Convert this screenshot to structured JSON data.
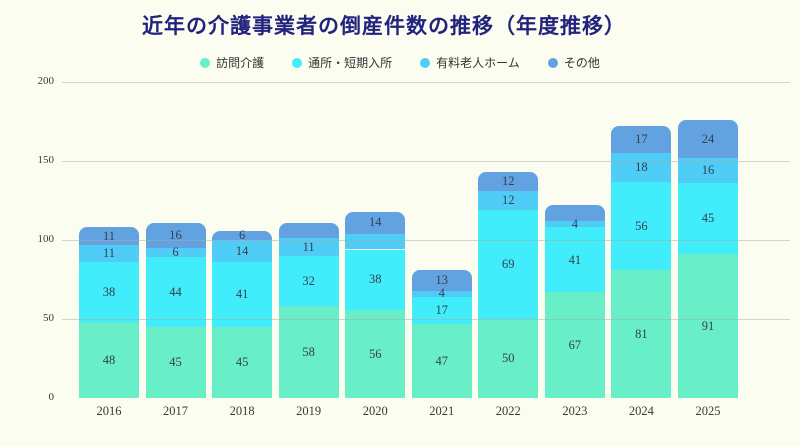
{
  "colors": {
    "background": "#fafdf0",
    "title": "#23237d",
    "grid": "#aaaaaa",
    "value_label": "#33404f",
    "axis_label": "#3a3a3a"
  },
  "chart_data": {
    "type": "bar",
    "stacked": true,
    "title": "近年の介護事業者の倒産件数の推移（年度推移）",
    "legend_position": "top",
    "grid": "horizontal",
    "categories": [
      "2016",
      "2017",
      "2018",
      "2019",
      "2020",
      "2021",
      "2022",
      "2023",
      "2024",
      "2025"
    ],
    "yticks": [
      0,
      50,
      100,
      150,
      200
    ],
    "ylim": [
      0,
      200
    ],
    "series": [
      {
        "name": "訪問介護",
        "color": "#69efc7",
        "values": [
          48,
          45,
          45,
          58,
          56,
          47,
          50,
          67,
          81,
          91
        ],
        "labels": [
          "48",
          "45",
          "45",
          "58",
          "56",
          "47",
          "50",
          "67",
          "81",
          "91"
        ]
      },
      {
        "name": "通所・短期入所",
        "color": "#41ecfb",
        "values": [
          38,
          44,
          41,
          32,
          38,
          17,
          69,
          41,
          56,
          45
        ],
        "labels": [
          "38",
          "44",
          "41",
          "32",
          "38",
          "17",
          "69",
          "41",
          "56",
          "45"
        ]
      },
      {
        "name": "有料老人ホーム",
        "color": "#50cdf7",
        "values": [
          11,
          6,
          14,
          11,
          10,
          4,
          12,
          4,
          18,
          16
        ],
        "labels": [
          "11",
          "6",
          "14",
          "11",
          "",
          "4",
          "12",
          "4",
          "18",
          "16"
        ]
      },
      {
        "name": "その他",
        "color": "#63a2e0",
        "values": [
          11,
          16,
          6,
          10,
          14,
          13,
          12,
          10,
          17,
          24
        ],
        "labels": [
          "11",
          "16",
          "6",
          "",
          "14",
          "13",
          "12",
          "",
          "17",
          "24"
        ]
      }
    ]
  }
}
